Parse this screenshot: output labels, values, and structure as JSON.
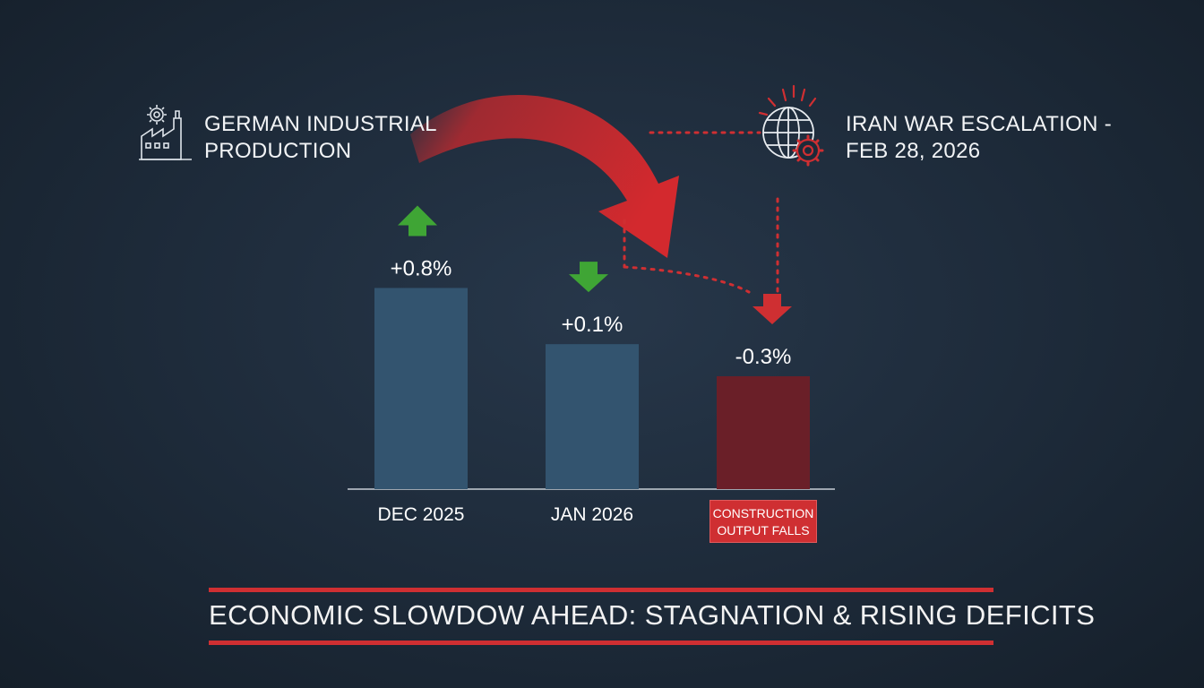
{
  "headers": {
    "left_title_line1": "GERMAN INDUSTRIAL",
    "left_title_line2": "PRODUCTION",
    "right_title_line1": "IRAN WAR ESCALATION -",
    "right_title_line2": "FEB 28, 2026"
  },
  "icons": {
    "left": "factory-gear-icon",
    "right": "globe-gear-alert-icon"
  },
  "chart_data": {
    "type": "bar",
    "categories": [
      "DEC 2025",
      "JAN 2026",
      ""
    ],
    "values": [
      0.8,
      0.1,
      -0.3
    ],
    "data_labels": [
      "+0.8%",
      "+0.1%",
      "-0.3%"
    ],
    "bar_colors": [
      "#33546f",
      "#33546f",
      "#6a1f28"
    ],
    "arrow_directions": [
      "up",
      "down",
      "down"
    ],
    "arrow_colors": [
      "#3fa535",
      "#3fa535",
      "#cf2f32"
    ],
    "title": "",
    "xlabel": "",
    "ylabel": "",
    "grid": false
  },
  "construction_tag": {
    "line1": "CONSTRUCTION",
    "line2": "OUTPUT FALLS"
  },
  "banner": {
    "text": "ECONOMIC SLOWDOW  AHEAD: STAGNATION & RISING DEFICITS"
  },
  "colors": {
    "accent_red": "#cf2f32",
    "bar_blue": "#33546f",
    "bar_red": "#6a1f28",
    "arrow_green": "#3fa535",
    "background": "#1d2a39"
  }
}
